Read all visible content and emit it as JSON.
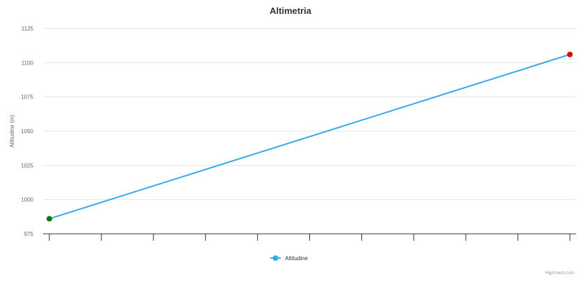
{
  "chart_data": {
    "type": "line",
    "title": "Altimetria",
    "xlabel": "",
    "ylabel": "Altitudine (m)",
    "ylim": [
      975,
      1125
    ],
    "yticks": [
      975,
      1000,
      1025,
      1050,
      1075,
      1100,
      1125
    ],
    "x_tick_count": 11,
    "grid": true,
    "legend_position": "bottom-center",
    "series": [
      {
        "name": "Altitudine",
        "color": "#33aaee",
        "points": [
          {
            "x": 0,
            "y": 986,
            "marker_color": "#008000"
          },
          {
            "x": 10,
            "y": 1106,
            "marker_color": "#ee0000"
          }
        ]
      }
    ]
  },
  "credits": "Highcharts.com"
}
